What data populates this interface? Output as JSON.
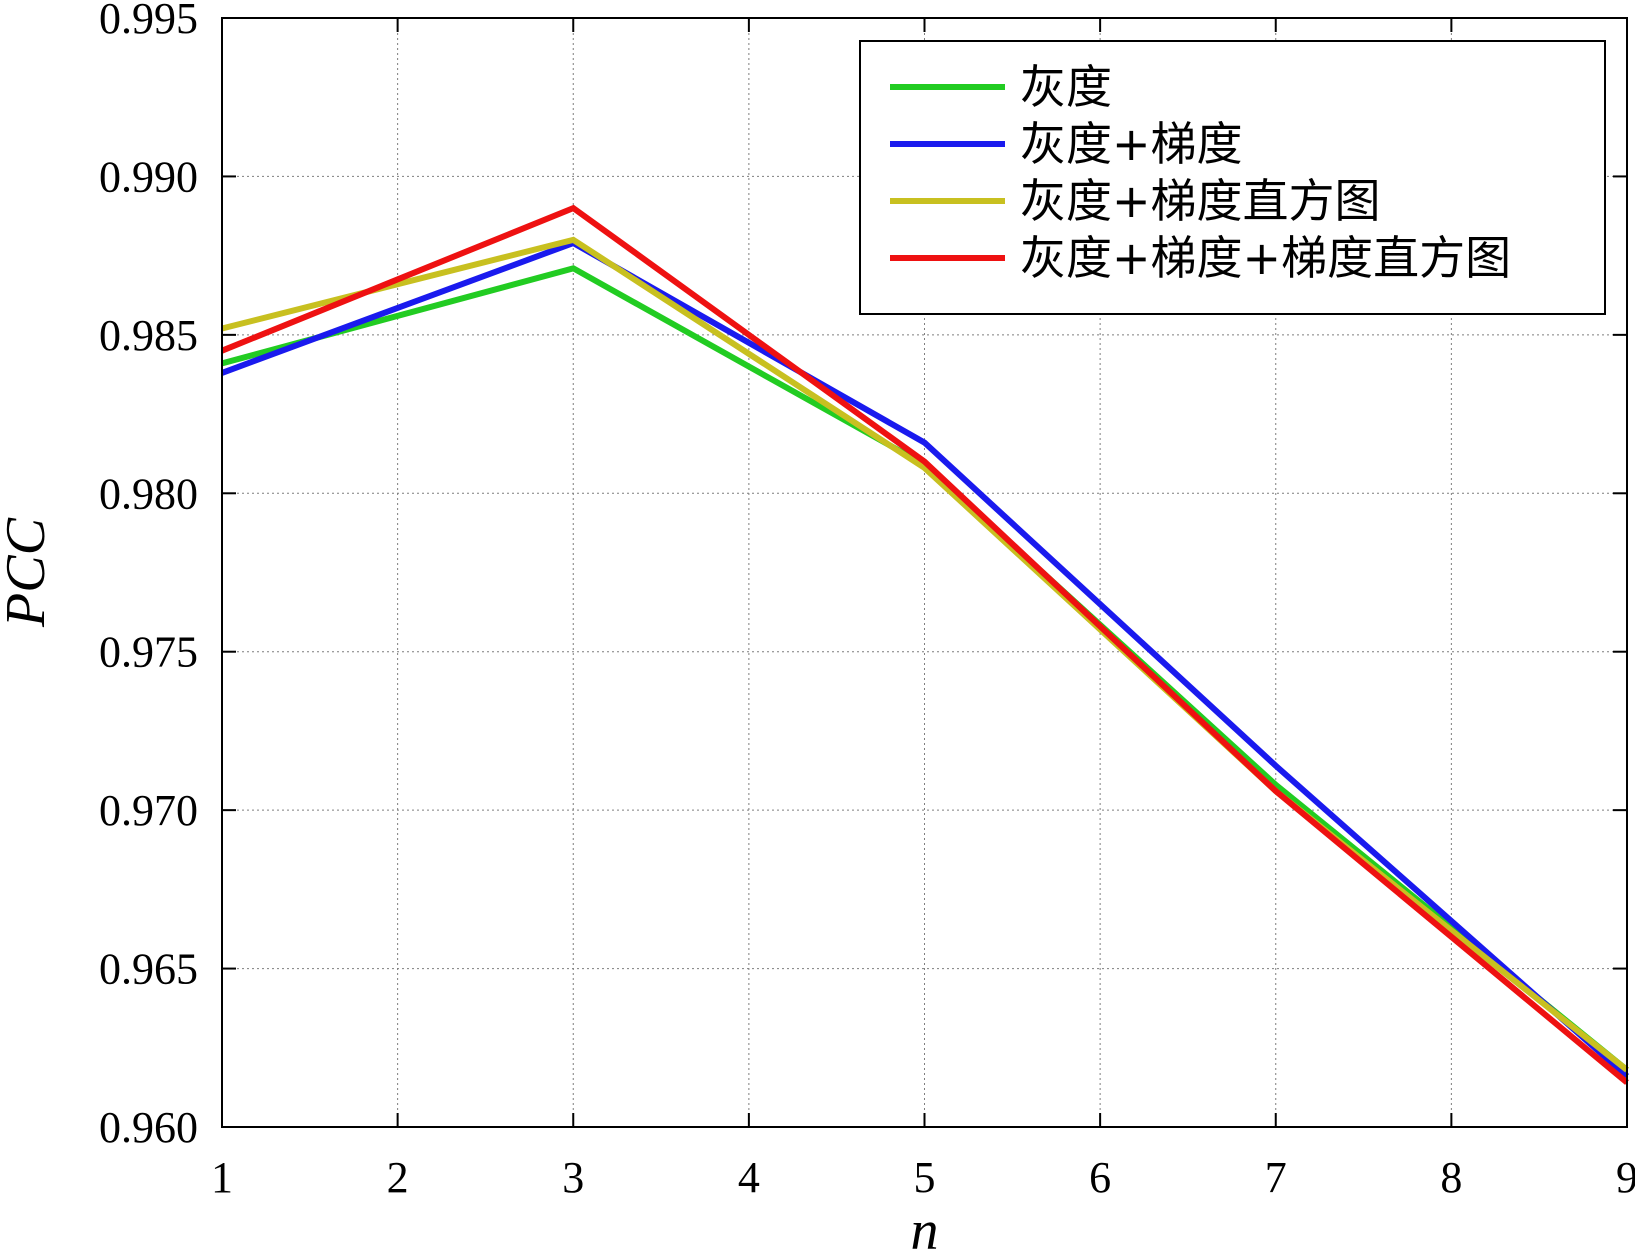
{
  "chart_data": {
    "type": "line",
    "title": "",
    "xlabel": "n",
    "ylabel": "PCC",
    "xlim": [
      1,
      9
    ],
    "ylim": [
      0.96,
      0.995
    ],
    "x_ticks": [
      "1",
      "2",
      "3",
      "4",
      "5",
      "6",
      "7",
      "8",
      "9"
    ],
    "y_ticks": [
      "0.960",
      "0.965",
      "0.970",
      "0.975",
      "0.980",
      "0.985",
      "0.990",
      "0.995"
    ],
    "grid": true,
    "legend_position": "top-right",
    "x": [
      1,
      3,
      5,
      7,
      9
    ],
    "series": [
      {
        "name": "灰度",
        "color": "#22cc22",
        "values": [
          0.9841,
          0.9871,
          0.9809,
          0.9708,
          0.9618
        ]
      },
      {
        "name": "灰度+梯度",
        "color": "#1a1aee",
        "values": [
          0.9838,
          0.9879,
          0.9816,
          0.9714,
          0.9616
        ]
      },
      {
        "name": "灰度+梯度直方图",
        "color": "#c8c020",
        "values": [
          0.9852,
          0.988,
          0.9808,
          0.9706,
          0.9618
        ]
      },
      {
        "name": "灰度+梯度+梯度直方图",
        "color": "#ee1111",
        "values": [
          0.9845,
          0.989,
          0.981,
          0.9706,
          0.9614
        ]
      }
    ]
  }
}
